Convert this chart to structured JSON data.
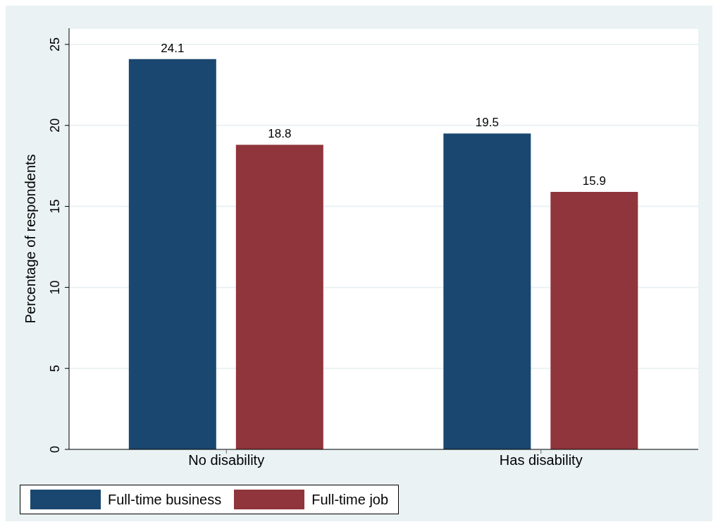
{
  "chart_data": {
    "type": "bar",
    "ylabel": "Percentage of respondents",
    "categories": [
      "No disability",
      "Has disability"
    ],
    "series": [
      {
        "name": "Full-time business",
        "color": "#1a476f",
        "values": [
          24.1,
          19.5
        ]
      },
      {
        "name": "Full-time job",
        "color": "#90353b",
        "values": [
          18.8,
          15.9
        ]
      }
    ],
    "ylim": [
      0,
      26
    ],
    "yticks": [
      0,
      5,
      10,
      15,
      20,
      25
    ],
    "grid": "y",
    "legend": "bottom",
    "data_labels": true
  }
}
